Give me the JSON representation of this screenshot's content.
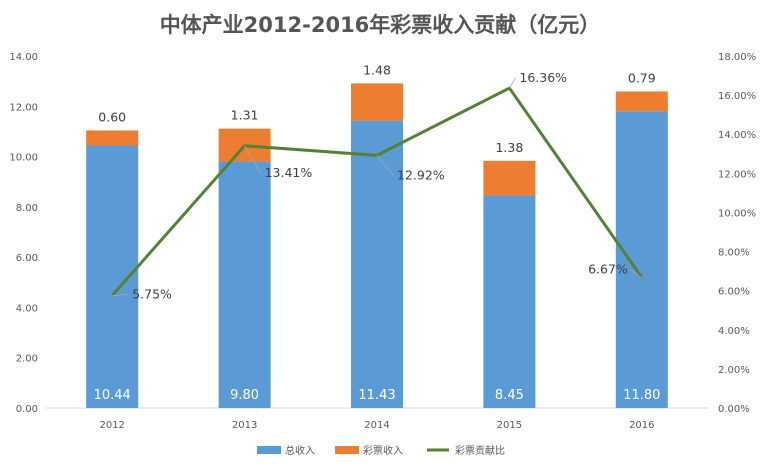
{
  "chart_data": {
    "type": "bar",
    "title": "中体产业2012-2016年彩票收入贡献（亿元）",
    "categories": [
      "2012",
      "2013",
      "2014",
      "2015",
      "2016"
    ],
    "series": [
      {
        "name": "总收入",
        "kind": "bar",
        "color": "#5b9bd5",
        "values": [
          10.44,
          9.8,
          11.43,
          8.45,
          11.8
        ]
      },
      {
        "name": "彩票收入",
        "kind": "bar",
        "color": "#ed7d31",
        "values": [
          0.6,
          1.31,
          1.48,
          1.38,
          0.79
        ]
      },
      {
        "name": "彩票贡献比",
        "kind": "line",
        "axis": "right",
        "color": "#548235",
        "values": [
          5.75,
          13.41,
          12.92,
          16.36,
          6.67
        ]
      }
    ],
    "bar_labels": {
      "total": [
        "10.44",
        "9.80",
        "11.43",
        "8.45",
        "11.80"
      ],
      "lottery": [
        "0.60",
        "1.31",
        "1.48",
        "1.38",
        "0.79"
      ],
      "ratio": [
        "5.75%",
        "13.41%",
        "12.92%",
        "16.36%",
        "6.67%"
      ]
    },
    "left_axis": {
      "min": 0,
      "max": 14,
      "step": 2,
      "ticks": [
        "0.00",
        "2.00",
        "4.00",
        "6.00",
        "8.00",
        "10.00",
        "12.00",
        "14.00"
      ]
    },
    "right_axis": {
      "min": 0,
      "max": 18,
      "step": 2,
      "ticks": [
        "0.00%",
        "2.00%",
        "4.00%",
        "6.00%",
        "8.00%",
        "10.00%",
        "12.00%",
        "14.00%",
        "16.00%",
        "18.00%"
      ]
    },
    "legend": [
      "总收入",
      "彩票收入",
      "彩票贡献比"
    ],
    "legend_position": "bottom",
    "grid": false
  }
}
